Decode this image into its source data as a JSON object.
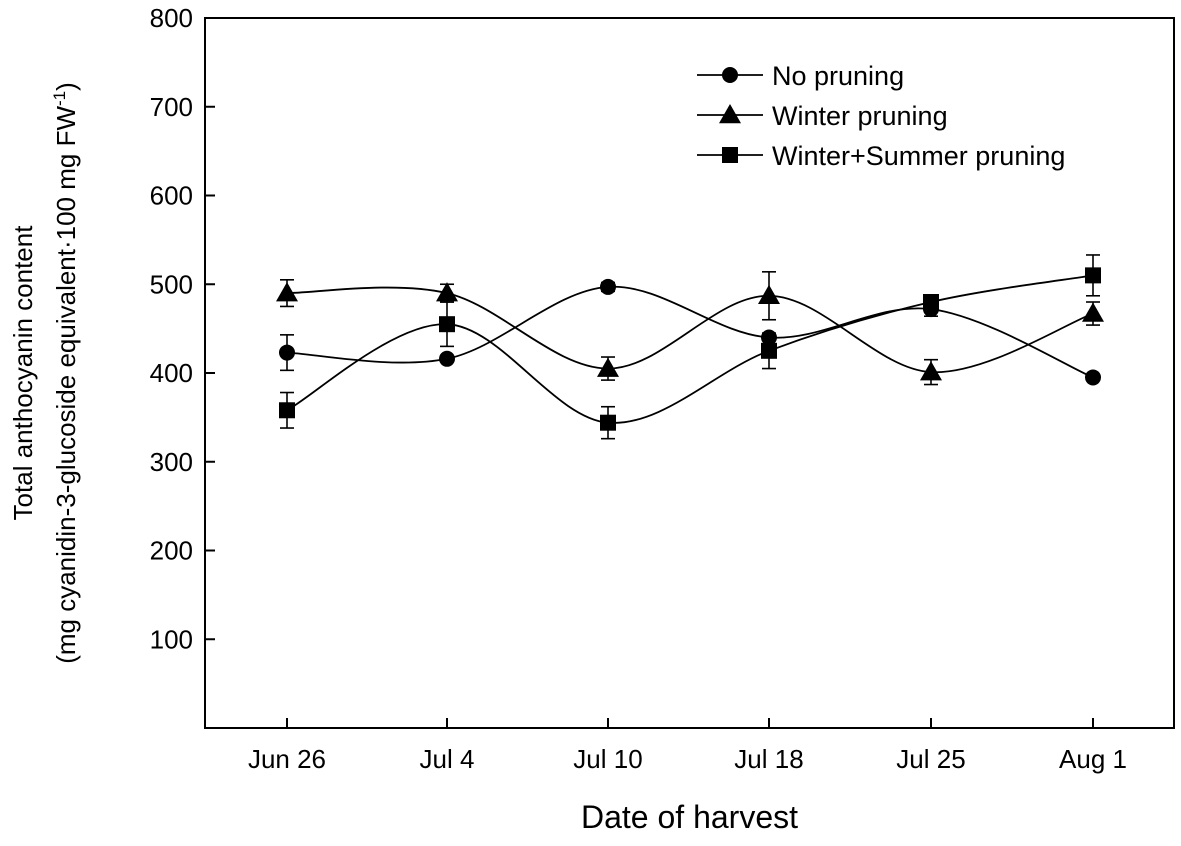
{
  "chart_data": {
    "type": "line",
    "title": "",
    "xlabel": "Date of harvest",
    "ylabel_line1": "Total anthocyanin content",
    "ylabel_line2_main": "(mg cyanidin-3-glucoside equivalent·100 mg FW",
    "ylabel_line2_sup": "-1",
    "ylabel_line2_end": ")",
    "categories": [
      "Jun 26",
      "Jul 4",
      "Jul 10",
      "Jul 18",
      "Jul 25",
      "Aug 1"
    ],
    "ylim": [
      0,
      800
    ],
    "yticks": [
      100,
      200,
      300,
      400,
      500,
      600,
      700,
      800
    ],
    "legend_position": "top-right",
    "series": [
      {
        "name": "No pruning",
        "marker": "circle",
        "values": [
          423,
          416,
          497,
          440,
          472,
          395
        ],
        "errors": [
          20,
          0,
          5,
          0,
          8,
          0
        ]
      },
      {
        "name": "Winter pruning",
        "marker": "triangle",
        "values": [
          490,
          490,
          405,
          487,
          401,
          467
        ],
        "errors": [
          15,
          10,
          13,
          27,
          14,
          13
        ]
      },
      {
        "name": "Winter+Summer pruning",
        "marker": "square",
        "values": [
          358,
          455,
          344,
          425,
          480,
          510
        ],
        "errors": [
          20,
          25,
          18,
          20,
          0,
          23
        ]
      }
    ]
  }
}
